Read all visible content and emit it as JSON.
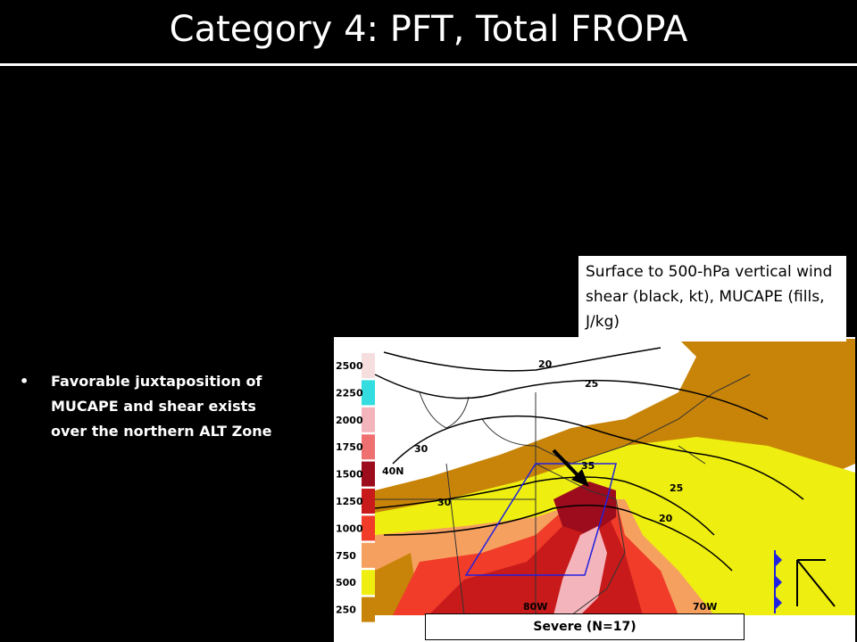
{
  "title": "Category 4: PFT, Total FROPA",
  "bullets": [
    "Favorable juxtaposition of MUCAPE and shear exists over the northern ALT Zone"
  ],
  "figure": {
    "caption": "Surface to 500-hPa vertical wind shear (black, kt), MUCAPE (fills, J/kg)",
    "colorbar": [
      {
        "label": 2500,
        "color": "#f6dede"
      },
      {
        "label": 2250,
        "color": "#33dde0"
      },
      {
        "label": 2000,
        "color": "#f4b4bc"
      },
      {
        "label": 1750,
        "color": "#ee7070"
      },
      {
        "label": 1500,
        "color": "#9c0c1c"
      },
      {
        "label": 1250,
        "color": "#c81a1a"
      },
      {
        "label": 1000,
        "color": "#f03c28"
      },
      {
        "label": 750,
        "color": "#f6a060"
      },
      {
        "label": 500,
        "color": "#eeee10"
      },
      {
        "label": 250,
        "color": "#c88408"
      }
    ],
    "labels": [
      "20",
      "25",
      "30",
      "35",
      "30",
      "25",
      "20",
      "40N",
      "80W",
      "70W"
    ],
    "panel_label": "Severe (N=17)"
  }
}
